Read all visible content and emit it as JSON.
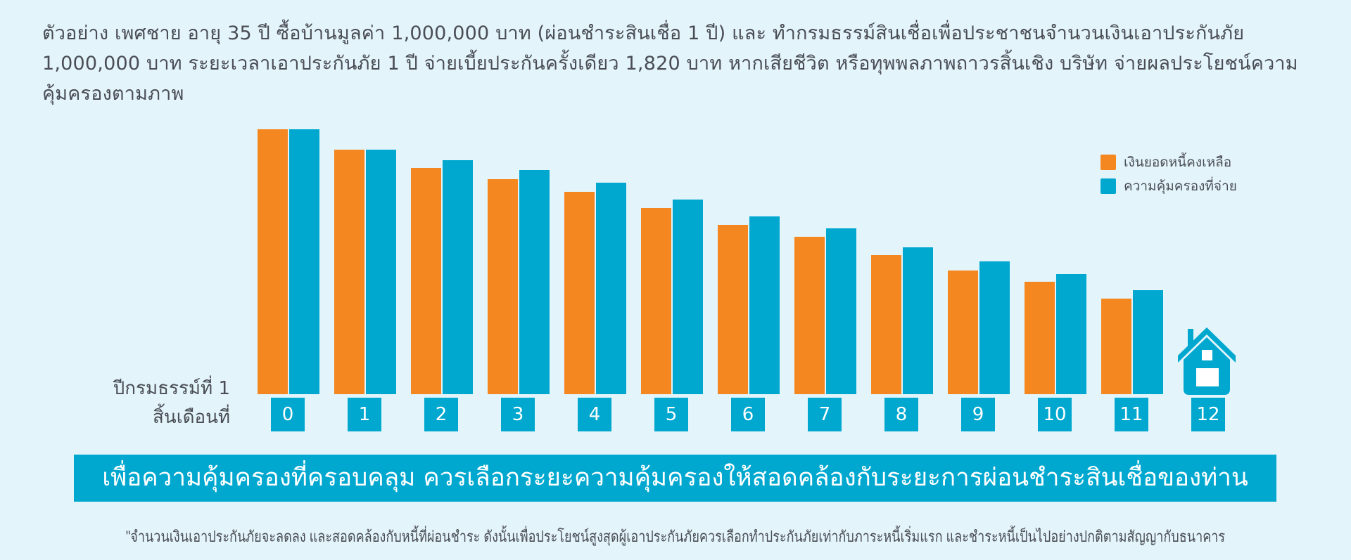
{
  "intro": {
    "text": "ตัวอย่าง เพศชาย อายุ 35 ปี ซื้อบ้านมูลค่า 1,000,000 บาท (ผ่อนชำระสินเชื่อ 1 ปี) และ ทำกรมธรรม์สินเชื่อเพื่อประชาชนจำนวนเงินเอาประกันภัย 1,000,000 บาท ระยะเวลาเอาประกันภัย 1 ปี จ่ายเบี้ยประกันครั้งเดียว 1,820 บาท หากเสียชีวิต หรือทุพพลภาพถาวรสิ้นเชิง บริษัท จ่ายผลประโยชน์ความคุ้มครองตามภาพ"
  },
  "axis": {
    "year_label": "ปีกรมธรรม์ที่ 1",
    "month_label": "สิ้นเดือนที่"
  },
  "legend": {
    "debt": "เงินยอดหนี้คงเหลือ",
    "cover": "ความคุ้มครองที่จ่าย"
  },
  "colors": {
    "debt": "#f58720",
    "cover": "#00a8d0",
    "background": "#e3f4fa",
    "text": "#4a4d55"
  },
  "months": [
    "0",
    "1",
    "2",
    "3",
    "4",
    "5",
    "6",
    "7",
    "8",
    "9",
    "10",
    "11",
    "12"
  ],
  "banner": {
    "text": "เพื่อความคุ้มครองที่ครอบคลุม ควรเลือกระยะความคุ้มครองให้สอดคล้องกับระยะการผ่อนชำระสินเชื่อของท่าน"
  },
  "footnote": {
    "text": "\"จำนวนเงินเอาประกันภัยจะลดลง และสอดคล้องกับหนี้ที่ผ่อนชำระ ดังนั้นเพื่อประโยชน์สูงสุดผู้เอาประกันภัยควรเลือกทำประกันภัยเท่ากับภาระหนี้เริ่มแรก และชำระหนี้เป็นไปอย่างปกติตามสัญญากับธนาคาร"
  },
  "chart_data": {
    "type": "bar",
    "title": "",
    "xlabel": "ปีกรมธรรม์ที่ 1 / สิ้นเดือนที่",
    "ylabel": "",
    "categories": [
      "0",
      "1",
      "2",
      "3",
      "4",
      "5",
      "6",
      "7",
      "8",
      "9",
      "10",
      "11",
      "12"
    ],
    "series": [
      {
        "name": "เงินยอดหนี้คงเหลือ",
        "color": "#f58720",
        "values": [
          1000000,
          923000,
          854000,
          812000,
          764000,
          703000,
          639000,
          594000,
          525000,
          467000,
          424000,
          361000,
          0
        ]
      },
      {
        "name": "ความคุ้มครองที่จ่าย",
        "color": "#00a8d0",
        "values": [
          1000000,
          923000,
          883000,
          846000,
          798000,
          735000,
          671000,
          626000,
          554000,
          501000,
          454000,
          393000,
          0
        ]
      }
    ],
    "ylim": [
      0,
      1000000
    ],
    "grid": false,
    "legend_position": "upper right",
    "annotations": [
      "Month 12 shown as house icon (loan paid off)"
    ]
  }
}
